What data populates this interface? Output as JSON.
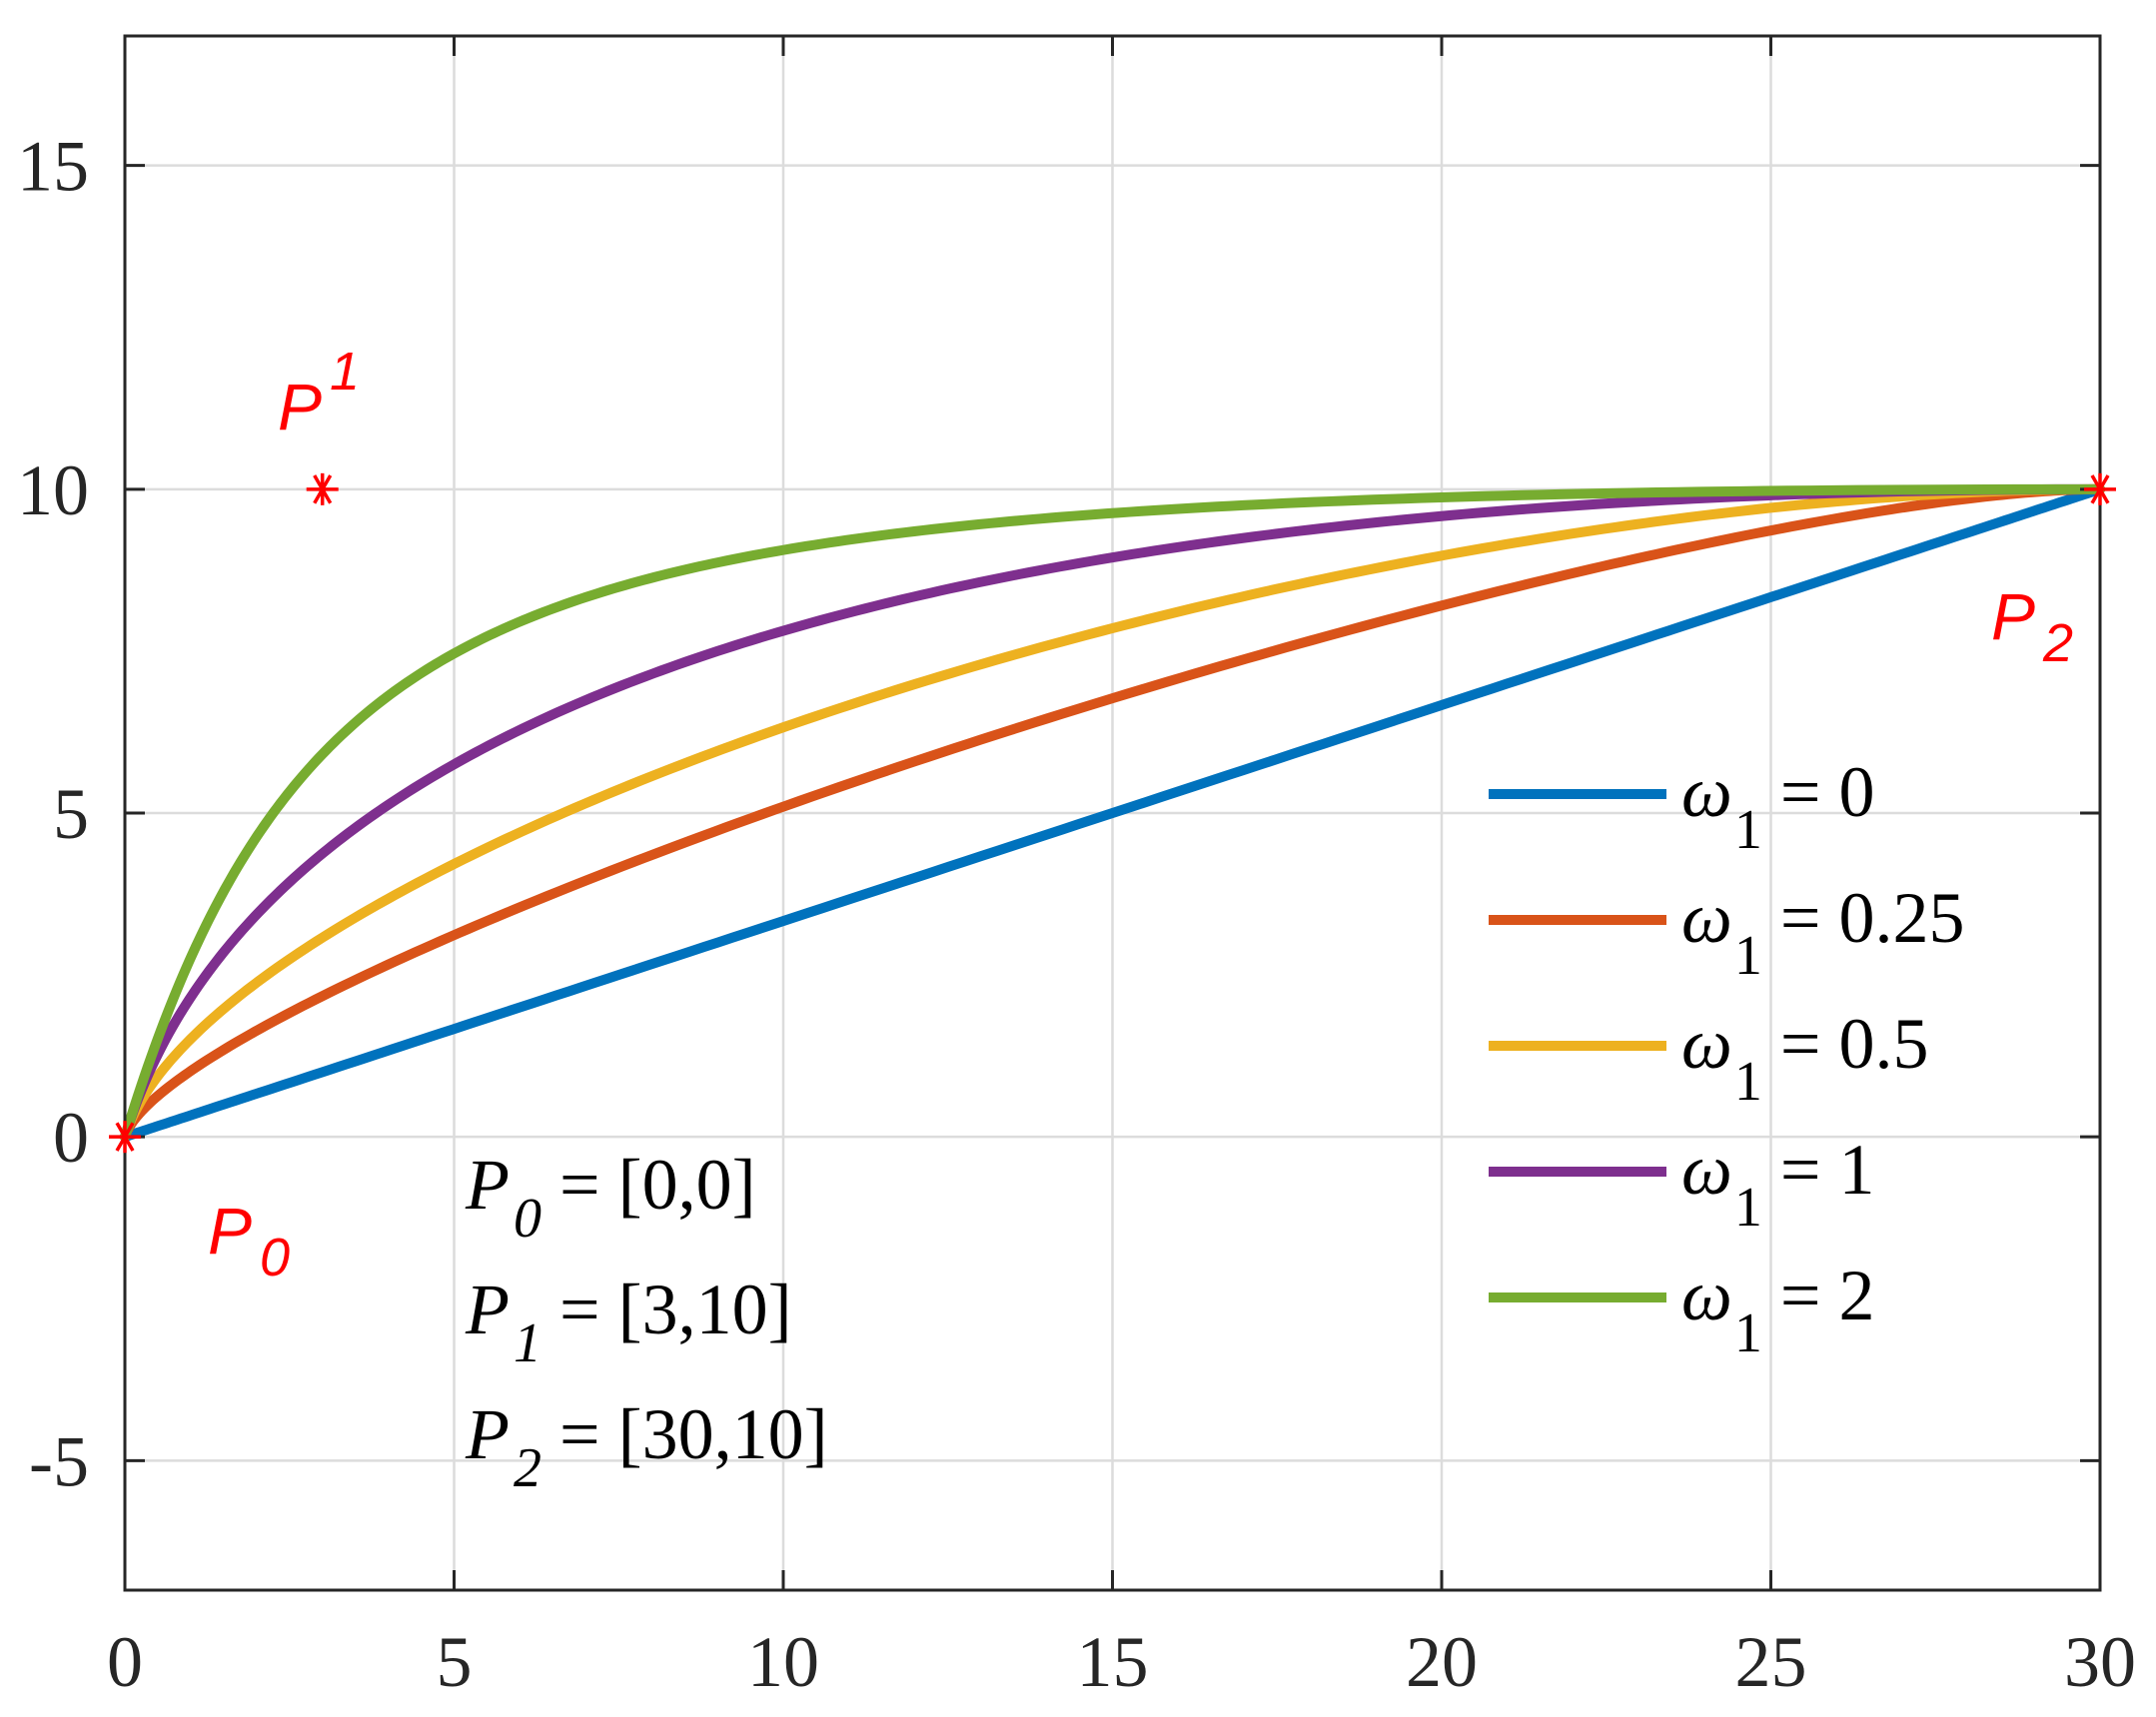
{
  "chart_data": {
    "type": "line",
    "xlim": [
      0,
      30
    ],
    "ylim": [
      -7,
      17
    ],
    "x_ticks": [
      0,
      5,
      10,
      15,
      20,
      25,
      30
    ],
    "y_ticks": [
      -5,
      0,
      5,
      10,
      15
    ],
    "x_tick_labels": [
      "0",
      "5",
      "10",
      "15",
      "20",
      "25",
      "30"
    ],
    "y_tick_labels": [
      "-5",
      "0",
      "5",
      "10",
      "15"
    ],
    "grid": true,
    "box": true,
    "legend_position": "right",
    "control_points": [
      {
        "x": 0,
        "y": 0,
        "label_main": "P",
        "label_sub": "0"
      },
      {
        "x": 3,
        "y": 10,
        "label_main": "P",
        "label_sub": "1"
      },
      {
        "x": 30,
        "y": 10,
        "label_main": "P",
        "label_sub": "2"
      }
    ],
    "marker_color": "#ff0000",
    "annotations": [
      {
        "main": "P",
        "sub": "0",
        "rest": " = [0,0]"
      },
      {
        "main": "P",
        "sub": "1",
        "rest": " = [3,10]"
      },
      {
        "main": "P",
        "sub": "2",
        "rest": " = [30,10]"
      }
    ],
    "series": [
      {
        "legend_main": "ω",
        "legend_sub": "1",
        "legend_rest": " = 0",
        "weight": 0,
        "color": "#0072bd"
      },
      {
        "legend_main": "ω",
        "legend_sub": "1",
        "legend_rest": " = 0.25",
        "weight": 0.25,
        "color": "#d95319"
      },
      {
        "legend_main": "ω",
        "legend_sub": "1",
        "legend_rest": " = 0.5",
        "weight": 0.5,
        "color": "#edb120"
      },
      {
        "legend_main": "ω",
        "legend_sub": "1",
        "legend_rest": " = 1",
        "weight": 1,
        "color": "#7e2f8e"
      },
      {
        "legend_main": "ω",
        "legend_sub": "1",
        "legend_rest": " = 2",
        "weight": 2,
        "color": "#77ac30"
      }
    ]
  }
}
